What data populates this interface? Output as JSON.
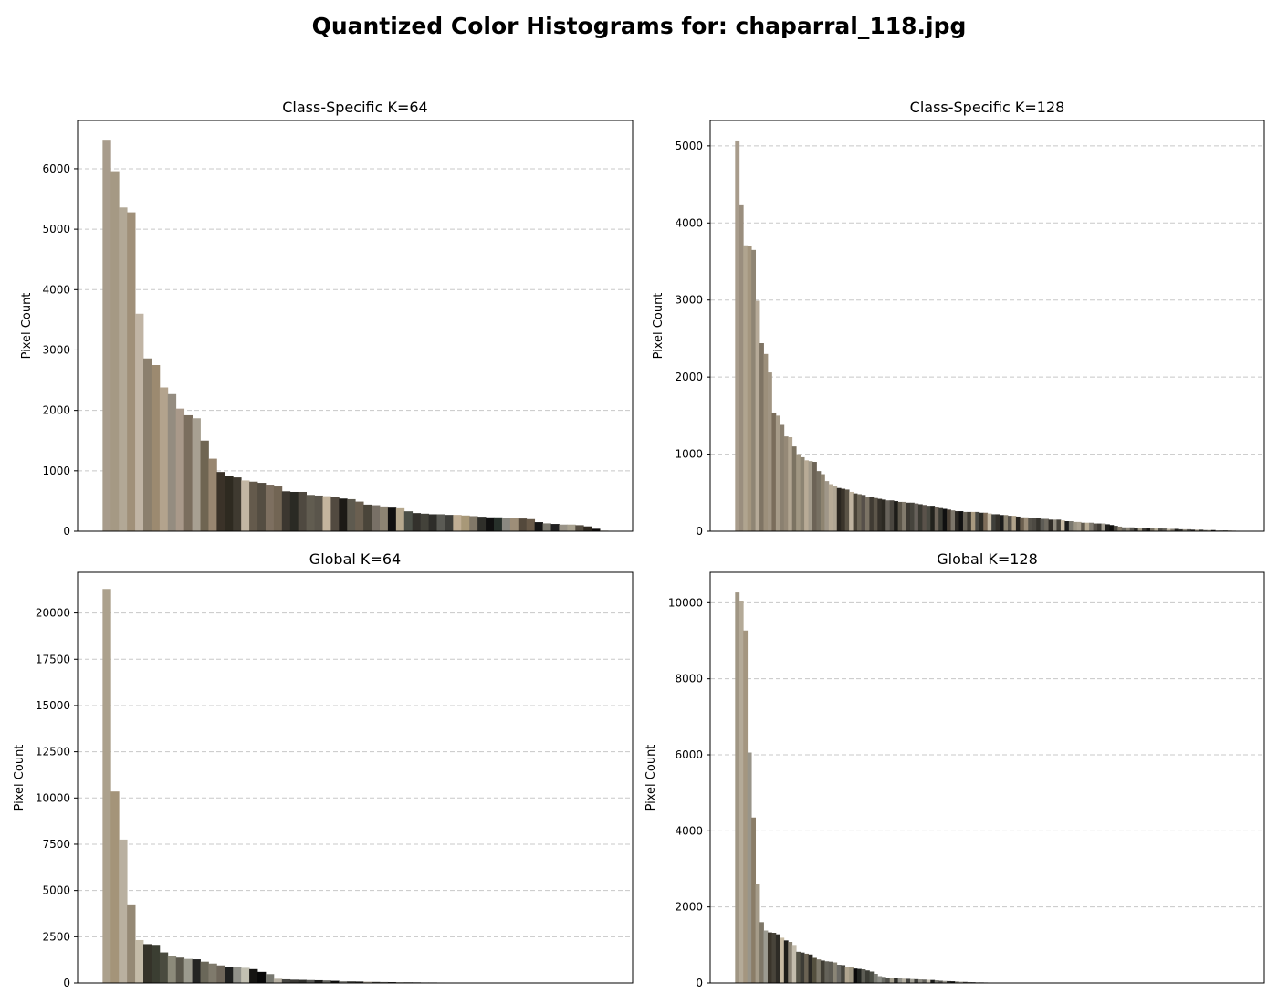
{
  "figure": {
    "title": "Quantized Color Histograms for: chaparral_118.jpg"
  },
  "chart_data": [
    {
      "type": "bar",
      "title": "Class-Specific K=64",
      "ylabel": "Pixel Count",
      "xlabel": "",
      "ylim": [
        0,
        6800
      ],
      "yticks": [
        0,
        1000,
        2000,
        3000,
        4000,
        5000,
        6000
      ],
      "grid": "y-dashed",
      "legend": "none",
      "values": [
        6480,
        5960,
        5360,
        5280,
        3600,
        2860,
        2750,
        2380,
        2270,
        2030,
        1920,
        1870,
        1500,
        1200,
        980,
        910,
        890,
        840,
        820,
        800,
        770,
        740,
        660,
        650,
        650,
        600,
        590,
        580,
        570,
        540,
        530,
        490,
        440,
        430,
        410,
        390,
        380,
        330,
        300,
        290,
        280,
        280,
        270,
        270,
        260,
        250,
        240,
        230,
        230,
        220,
        220,
        210,
        200,
        150,
        130,
        120,
        110,
        110,
        100,
        80,
        40,
        10,
        5,
        0
      ],
      "colors": [
        "#a89c8c",
        "#a59984",
        "#b2a896",
        "#a09079",
        "#c0b4a4",
        "#8b7f6d",
        "#9c8a70",
        "#b3a38d",
        "#948c80",
        "#a9998a",
        "#7b6e5e",
        "#a8a092",
        "#6f6552",
        "#988670",
        "#3a3228",
        "#2e2a20",
        "#3f3a30",
        "#c2b6a3",
        "#645a4c",
        "#544d42",
        "#7d6f60",
        "#726554",
        "#3c3730",
        "#2a2a24",
        "#4f4940",
        "#615c50",
        "#5a554b",
        "#c4b59e",
        "#524a40",
        "#1c1a16",
        "#5e5a4f",
        "#6a5f50",
        "#4a453a",
        "#787066",
        "#8c8372",
        "#111010",
        "#b6a88e",
        "#4b4f47",
        "#33312c",
        "#43423a",
        "#2e2d29",
        "#5a5a54",
        "#3e3e3a",
        "#c0ae94",
        "#a89878",
        "#817868",
        "#2f2f2a",
        "#101010",
        "#27302a",
        "#8a8880",
        "#9d8e78",
        "#54493c",
        "#695a49",
        "#151515",
        "#7d7a70",
        "#202020",
        "#9a9488",
        "#a9a290",
        "#544c40",
        "#2d271e",
        "#0e0c0a",
        "#b2a694",
        "#c8bca8",
        "#999080"
      ]
    },
    {
      "type": "bar",
      "title": "Class-Specific K=128",
      "ylabel": "Pixel Count",
      "xlabel": "",
      "ylim": [
        0,
        5330
      ],
      "yticks": [
        0,
        1000,
        2000,
        3000,
        4000,
        5000
      ],
      "grid": "y-dashed",
      "legend": "none",
      "values": [
        5070,
        4230,
        3710,
        3700,
        3650,
        2990,
        2440,
        2300,
        2060,
        1540,
        1500,
        1380,
        1230,
        1220,
        1100,
        1000,
        960,
        920,
        910,
        900,
        780,
        740,
        650,
        610,
        590,
        560,
        550,
        540,
        510,
        490,
        480,
        470,
        450,
        440,
        430,
        420,
        410,
        400,
        400,
        390,
        380,
        380,
        370,
        370,
        360,
        350,
        340,
        330,
        330,
        310,
        300,
        290,
        280,
        270,
        260,
        260,
        250,
        250,
        250,
        250,
        240,
        240,
        230,
        220,
        220,
        210,
        210,
        200,
        200,
        190,
        180,
        180,
        170,
        170,
        170,
        160,
        160,
        150,
        150,
        150,
        140,
        130,
        130,
        120,
        120,
        110,
        110,
        110,
        100,
        100,
        100,
        90,
        80,
        70,
        60,
        50,
        50,
        50,
        45,
        45,
        40,
        40,
        40,
        35,
        35,
        35,
        30,
        30,
        30,
        25,
        25,
        25,
        20,
        20,
        20,
        15,
        15,
        15,
        10,
        10,
        10,
        10,
        8,
        6,
        4,
        2,
        1,
        0
      ],
      "colors": [
        "#a89c8c",
        "#9a8e7e",
        "#b0a48f",
        "#a4967f",
        "#8f8574",
        "#b6aa98",
        "#7f7464",
        "#9c8f7b",
        "#a19583",
        "#7a6d5b",
        "#a69b88",
        "#8a8070",
        "#958977",
        "#b1a591",
        "#7c7362",
        "#a09682",
        "#8c8472",
        "#b8ab96",
        "#a39b8b",
        "#6c6356",
        "#777062",
        "#8e8471",
        "#9f9688",
        "#b7ab97",
        "#b0a694",
        "#2a2620",
        "#3a342b",
        "#5a5346",
        "#c0b4a0",
        "#4a4438",
        "#6d6657",
        "#56504a",
        "#7b7365",
        "#403b33",
        "#5d564a",
        "#35312a",
        "#2c2922",
        "#67625a",
        "#4a463f",
        "#1d1c18",
        "#5b5549",
        "#817a6c",
        "#3b3832",
        "#46443d",
        "#66605a",
        "#3b3a33",
        "#5a524a",
        "#4a4a42",
        "#22221d",
        "#6e655a",
        "#3a3a33",
        "#101010",
        "#4b4136",
        "#7c766a",
        "#2b2924",
        "#121212",
        "#6a6458",
        "#3e3a32",
        "#a89a80",
        "#494943",
        "#2c2b25",
        "#7d6c58",
        "#c3b7a2",
        "#40403b",
        "#33302a",
        "#1b1b1b",
        "#8b8270",
        "#555048",
        "#b0a28a",
        "#25231f",
        "#6b5f4f",
        "#9a8c78",
        "#55524a",
        "#4d4a43",
        "#36342e",
        "#5d5b55",
        "#6f6a60",
        "#302d28",
        "#8f8a7e",
        "#434039",
        "#c7baa5",
        "#1c1c1c",
        "#7a786f",
        "#9d9686",
        "#a8a090",
        "#605a4e",
        "#b8ac95",
        "#7f7a70",
        "#565149",
        "#3e3b35",
        "#a19c90",
        "#1e1d1a",
        "#0f0e0c",
        "#4b4740",
        "#857c6c",
        "#6a6860",
        "#8d8678",
        "#595650",
        "#2e2c28",
        "#a49c88",
        "#3f3d38",
        "#1a1917",
        "#7a7466",
        "#b5ad99",
        "#4e4c46",
        "#65625b",
        "#c0b6a2",
        "#868074",
        "#24231f",
        "#3a3934",
        "#999386",
        "#5a5852",
        "#2a2926",
        "#b2aa98",
        "#44433e",
        "#726f68",
        "#ada694",
        "#151513",
        "#8a867c",
        "#5f5e58",
        "#333230",
        "#9e998b",
        "#a6a090",
        "#4d4c48",
        "#6c6b66",
        "#1f1f1d",
        "#7f7e78",
        "#bdb7a6"
      ]
    },
    {
      "type": "bar",
      "title": "Global K=64",
      "ylabel": "Pixel Count",
      "xlabel": "",
      "ylim": [
        0,
        22200
      ],
      "yticks": [
        0,
        2500,
        5000,
        7500,
        10000,
        12500,
        15000,
        17500,
        20000
      ],
      "grid": "y-dashed",
      "legend": "none",
      "values": [
        21300,
        10350,
        7750,
        4250,
        2320,
        2100,
        2060,
        1650,
        1480,
        1370,
        1300,
        1280,
        1150,
        1050,
        950,
        880,
        850,
        820,
        750,
        600,
        480,
        230,
        200,
        180,
        170,
        160,
        150,
        140,
        120,
        100,
        90,
        80,
        70,
        60,
        55,
        50,
        45,
        40,
        35,
        30,
        28,
        25,
        22,
        20,
        18,
        16,
        14,
        12,
        10,
        8,
        6,
        5,
        4,
        3,
        2,
        1,
        0,
        0,
        0,
        0,
        0,
        0,
        0,
        0
      ],
      "colors": [
        "#aca18d",
        "#a49479",
        "#b9b0a0",
        "#958975",
        "#c4bba8",
        "#353329",
        "#3b3e32",
        "#4a4b3f",
        "#8c8a7a",
        "#5a574c",
        "#9b9a8e",
        "#232423",
        "#6a6759",
        "#7f7a6c",
        "#6e665a",
        "#1f2020",
        "#91918a",
        "#c2c0b2",
        "#151412",
        "#080808",
        "#777870",
        "#b6b0a2",
        "#454541",
        "#3a3935",
        "#2e2e2b",
        "#555551",
        "#1b1b19",
        "#666661",
        "#0f0f0e",
        "#8a8a85",
        "#3d3d38",
        "#222220",
        "#b0a898",
        "#484640",
        "#6a6860",
        "#2a2926",
        "#9c9a90",
        "#545250",
        "#343330",
        "#77756f",
        "#1a1a18",
        "#a5a396",
        "#5e5c57",
        "#3c3b38",
        "#8e8c84",
        "#2a2a27",
        "#47463f",
        "#0c0c0b",
        "#b8b4a8",
        "#706e68",
        "#4c4b47",
        "#343431",
        "#a19e92",
        "#5a5955",
        "#202020",
        "#7a7873",
        "#959389",
        "#3c3c39",
        "#666562",
        "#2d2d2b",
        "#4f4e4b",
        "#858380",
        "#181818",
        "#a8a69e"
      ]
    },
    {
      "type": "bar",
      "title": "Global K=128",
      "ylabel": "Pixel Count",
      "xlabel": "",
      "ylim": [
        0,
        10800
      ],
      "yticks": [
        0,
        2000,
        4000,
        6000,
        8000,
        10000
      ],
      "grid": "y-dashed",
      "legend": "none",
      "values": [
        10270,
        10050,
        9270,
        6060,
        4350,
        2600,
        1600,
        1380,
        1330,
        1320,
        1280,
        1190,
        1120,
        1080,
        1000,
        820,
        800,
        770,
        750,
        660,
        620,
        590,
        570,
        560,
        540,
        480,
        470,
        430,
        420,
        380,
        370,
        360,
        330,
        300,
        240,
        180,
        160,
        140,
        130,
        125,
        120,
        115,
        110,
        105,
        100,
        95,
        90,
        85,
        80,
        70,
        60,
        55,
        50,
        45,
        40,
        35,
        30,
        25,
        20,
        18,
        16,
        14,
        12,
        10,
        8,
        6,
        5,
        4,
        3,
        2,
        1,
        1,
        0,
        0,
        0,
        0,
        0,
        0,
        0,
        0,
        0,
        0,
        0,
        0,
        0,
        0,
        0,
        0,
        0,
        0,
        0,
        0,
        0,
        0,
        0,
        0,
        0,
        0,
        0,
        0,
        0,
        0,
        0,
        0,
        0,
        0,
        0,
        0,
        0,
        0,
        0,
        0,
        0,
        0,
        0,
        0,
        0,
        0,
        0,
        0,
        0,
        0,
        0,
        0,
        0,
        0,
        0,
        0
      ],
      "colors": [
        "#a09684",
        "#b4aa98",
        "#a49680",
        "#99958a",
        "#8a7d68",
        "#a59c8a",
        "#7e7768",
        "#9c9b91",
        "#3a352b",
        "#48443a",
        "#2e2c26",
        "#c8bca4",
        "#1f1f1b",
        "#8a8374",
        "#c3bcac",
        "#555347",
        "#3c3b35",
        "#6a6253",
        "#2a2824",
        "#55503f",
        "#7d786a",
        "#403d34",
        "#646259",
        "#5d5b53",
        "#8a8576",
        "#6b6a65",
        "#47463f",
        "#b0a58f",
        "#a09884",
        "#0a0a0a",
        "#212420",
        "#5d5d55",
        "#3c3d36",
        "#4b4d45",
        "#7b7c74",
        "#8c8d86",
        "#6a6b64",
        "#51514b",
        "#a49f8f",
        "#2c2d28",
        "#93928a",
        "#b5b0a2",
        "#444440",
        "#a2a095",
        "#3b3b37",
        "#8b8980",
        "#62615b",
        "#cac4b6",
        "#1c1c1a",
        "#787770",
        "#55544f",
        "#9f9d93",
        "#2e2e2b",
        "#0f0f0e",
        "#838279",
        "#b4b1a6",
        "#4a4946",
        "#6f6e69",
        "#212120",
        "#999890",
        "#3f3f3c",
        "#5f5e5a",
        "#c0bdb2",
        "#1a1a18",
        "#888780",
        "#2d2d2a",
        "#4f4e4a",
        "#767570",
        "#a5a39a",
        "#383836",
        "#646360",
        "#131312",
        "#909088",
        "#474744",
        "#b8b5aa",
        "#2a2a28",
        "#5c5b58",
        "#81807a",
        "#3d3d3a",
        "#6e6d69",
        "#9a9992",
        "#1d1d1c",
        "#53524f",
        "#abaaa2",
        "#33332f",
        "#787772",
        "#8f8e88",
        "#424240",
        "#616060",
        "#c5c2b8",
        "#181817",
        "#4a4947",
        "#6a6966",
        "#9c9b95",
        "#2d2d2c",
        "#858480",
        "#3a3a38",
        "#5a5957",
        "#b0aea6",
        "#232322",
        "#737270",
        "#474745",
        "#929190",
        "#333332",
        "#676665",
        "#bcb9b0",
        "#1e1e1d",
        "#7c7b78",
        "#4d4c4a",
        "#a09e98",
        "#2a2a29",
        "#62615f",
        "#888784",
        "#3f3f3e",
        "#575655",
        "#b4b2ac",
        "#161615",
        "#71706e",
        "#999896",
        "#363635",
        "#5d5c5b",
        "#8e8d8a",
        "#262625",
        "#6c6b69",
        "#a6a5a0",
        "#434342",
        "#7f7e7c",
        "#c0beb8"
      ]
    }
  ]
}
